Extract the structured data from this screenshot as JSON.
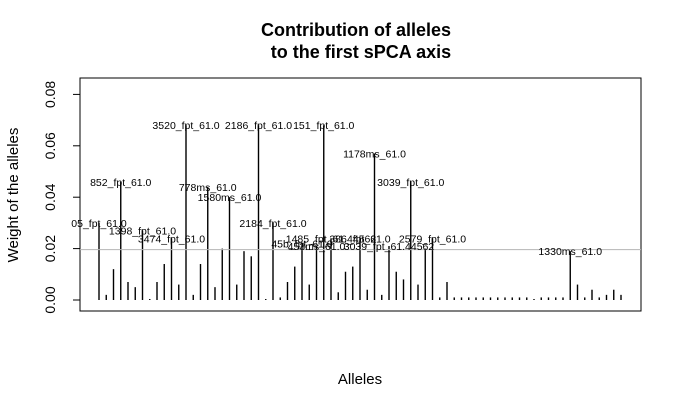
{
  "chart_data": {
    "type": "bar",
    "title": [
      "Contribution of alleles",
      "to the first sPCA axis"
    ],
    "xlabel": "Alleles",
    "ylabel": "Weight of the alleles",
    "ylim": [
      0,
      0.085
    ],
    "yticks": [
      0.0,
      0.02,
      0.04,
      0.06,
      0.08
    ],
    "ytick_labels": [
      "0.00",
      "0.02",
      "0.04",
      "0.06",
      "0.08"
    ],
    "threshold": 0.0196,
    "grid": false,
    "values": [
      0.03,
      0.002,
      0.012,
      0.046,
      0.007,
      0.005,
      0.027,
      0.0,
      0.007,
      0.014,
      0.024,
      0.006,
      0.068,
      0.002,
      0.014,
      0.044,
      0.005,
      0.02,
      0.04,
      0.006,
      0.019,
      0.017,
      0.068,
      0.0,
      0.03,
      0.001,
      0.007,
      0.013,
      0.022,
      0.006,
      0.021,
      0.068,
      0.024,
      0.003,
      0.011,
      0.013,
      0.024,
      0.004,
      0.057,
      0.002,
      0.021,
      0.011,
      0.008,
      0.046,
      0.006,
      0.02,
      0.024,
      0.001,
      0.007,
      0.001,
      0.001,
      0.001,
      0.001,
      0.001,
      0.001,
      0.001,
      0.001,
      0.001,
      0.001,
      0.001,
      0.0,
      0.001,
      0.001,
      0.001,
      0.001,
      0.019,
      0.006,
      0.001,
      0.004,
      0.001,
      0.002,
      0.004,
      0.002
    ],
    "labeled_bars": [
      {
        "index": 0,
        "label": "05_fpt_61.0"
      },
      {
        "index": 3,
        "label": "852_fpt_61.0"
      },
      {
        "index": 6,
        "label": "1398_fpt_61.0"
      },
      {
        "index": 10,
        "label": "3474_fpt_61.0"
      },
      {
        "index": 12,
        "label": "3520_fpt_61.0"
      },
      {
        "index": 15,
        "label": "778ms_61.0"
      },
      {
        "index": 18,
        "label": "1580ms_61.0"
      },
      {
        "index": 22,
        "label": "2186_fpt_61.0"
      },
      {
        "index": 24,
        "label": "2184_fpt_61.0"
      },
      {
        "index": 28,
        "label": "45b_fpt_61.0"
      },
      {
        "index": 30,
        "label": "453ms_61.0"
      },
      {
        "index": 31,
        "label": "151_fpt_61.0"
      },
      {
        "index": 32,
        "label": "1485_fpt_61.44562"
      },
      {
        "index": 36,
        "label": "386_fpt_61.0"
      },
      {
        "index": 38,
        "label": "1178ms_61.0"
      },
      {
        "index": 40,
        "label": "3039_fpt_61.44562"
      },
      {
        "index": 43,
        "label": "3039_fpt_61.0"
      },
      {
        "index": 46,
        "label": "2579_fpt_61.0"
      },
      {
        "index": 65,
        "label": "1330ms_61.0"
      }
    ]
  }
}
